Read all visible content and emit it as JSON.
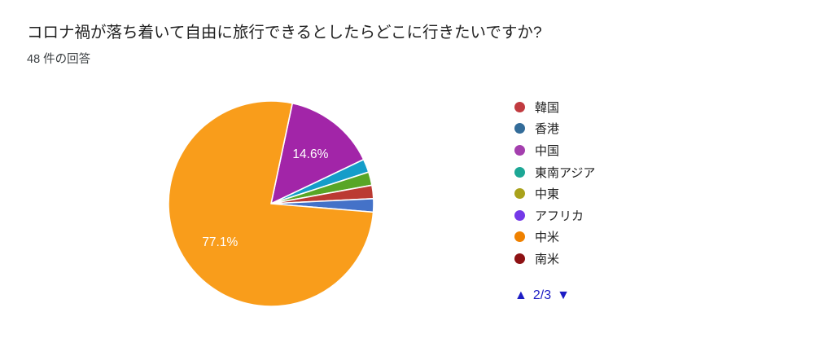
{
  "chart_data": {
    "type": "pie",
    "title": "コロナ禍が落ち着いて自由に旅行できるとしたらどこに行きたいですか?",
    "subtitle": "48 件の回答",
    "total_responses": 48,
    "start_angle_deg": 12,
    "slice_label_color": "#ffffff",
    "slices": [
      {
        "name": "magenta-slice",
        "percent": 14.6,
        "label": "14.6%",
        "color": "#A225A8"
      },
      {
        "name": "cyan-slice",
        "percent": 2.1,
        "label": "",
        "color": "#149DC9"
      },
      {
        "name": "green-slice",
        "percent": 2.1,
        "label": "",
        "color": "#58A626"
      },
      {
        "name": "red-slice",
        "percent": 2.1,
        "label": "",
        "color": "#BB3A32"
      },
      {
        "name": "blue-slice",
        "percent": 2.1,
        "label": "",
        "color": "#4472C8"
      },
      {
        "name": "orange-slice",
        "percent": 77.1,
        "label": "77.1%",
        "color": "#F99D1B"
      }
    ],
    "legend_position": "right",
    "legend": [
      {
        "label": "韓国",
        "color": "#C13B40"
      },
      {
        "label": "香港",
        "color": "#336C99"
      },
      {
        "label": "中国",
        "color": "#A43FAE"
      },
      {
        "label": "東南アジア",
        "color": "#1CA795"
      },
      {
        "label": "中東",
        "color": "#A9A21B"
      },
      {
        "label": "アフリカ",
        "color": "#7439E8"
      },
      {
        "label": "中米",
        "color": "#EF8100"
      },
      {
        "label": "南米",
        "color": "#8D1113"
      }
    ]
  },
  "pagination": {
    "up_arrow": "▲",
    "current_page": "2/3",
    "down_arrow": "▼",
    "color": "#1C1CC4"
  }
}
